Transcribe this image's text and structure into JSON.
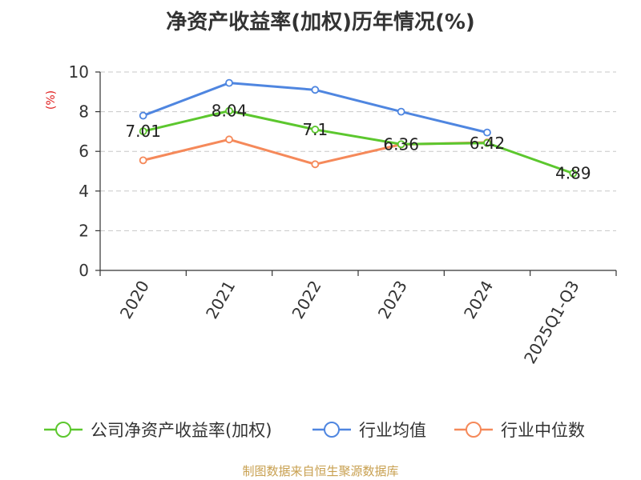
{
  "chart_data": {
    "type": "line",
    "title": "净资产收益率(加权)历年情况(%)",
    "ylabel": "(%)",
    "xlabel": "",
    "categories": [
      "2020",
      "2021",
      "2022",
      "2023",
      "2024",
      "2025Q1-Q3"
    ],
    "ylim": [
      0,
      10
    ],
    "yticks": [
      0,
      2,
      4,
      6,
      8,
      10
    ],
    "grid": true,
    "legend_position": "bottom",
    "series": [
      {
        "name": "公司净资产收益率(加权)",
        "color": "#5cc72e",
        "labeled": true,
        "values": [
          7.01,
          8.04,
          7.1,
          6.36,
          6.42,
          4.89
        ],
        "labels": [
          "7.01",
          "8.04",
          "7.1",
          "6.36",
          "6.42",
          "4.89"
        ]
      },
      {
        "name": "行业均值",
        "color": "#4f86e0",
        "labeled": false,
        "values": [
          7.8,
          9.45,
          9.1,
          8.0,
          6.95,
          null
        ]
      },
      {
        "name": "行业中位数",
        "color": "#f5895a",
        "labeled": false,
        "values": [
          5.55,
          6.6,
          5.35,
          6.35,
          6.45,
          null
        ]
      }
    ],
    "source": "制图数据来自恒生聚源数据库"
  }
}
